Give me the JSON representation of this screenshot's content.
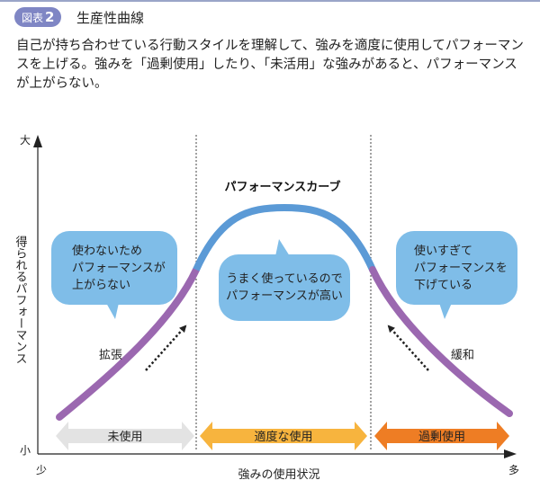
{
  "header": {
    "badge_label": "図表",
    "badge_number": "2",
    "title": "生産性曲線"
  },
  "description": "自己が持ち合わせている行動スタイルを理解して、強みを適度に使用してパフォーマンスを上げる。強みを「過剰使用」したり、「未活用」な強みがあると、パフォーマンスが上がらない。",
  "diagram": {
    "y_axis": {
      "label": "得られるパフォーマンス",
      "top_label": "大",
      "bottom_label": "小"
    },
    "x_axis": {
      "label": "強みの使用状況",
      "left_label": "少",
      "right_label": "多"
    },
    "curve_title": "パフォーマンスカーブ",
    "bubbles": {
      "left": [
        "使わないため",
        "パフォーマンスが",
        "上がらない"
      ],
      "center": [
        "うまく使っているので",
        "パフォーマンスが高い"
      ],
      "right": [
        "使いすぎて",
        "パフォーマンスを",
        "下げている"
      ]
    },
    "side_labels": {
      "expand": "拡張",
      "relax": "緩和"
    },
    "zones": [
      {
        "label": "未使用",
        "color": "#e3e3e3"
      },
      {
        "label": "適度な使用",
        "color": "#f7b43e"
      },
      {
        "label": "過剰使用",
        "color": "#ee7d24"
      }
    ],
    "colors": {
      "curve_optimal": "#5b9ad6",
      "curve_suboptimal": "#9b68b0",
      "bubble_fill": "#7fbde8"
    }
  }
}
